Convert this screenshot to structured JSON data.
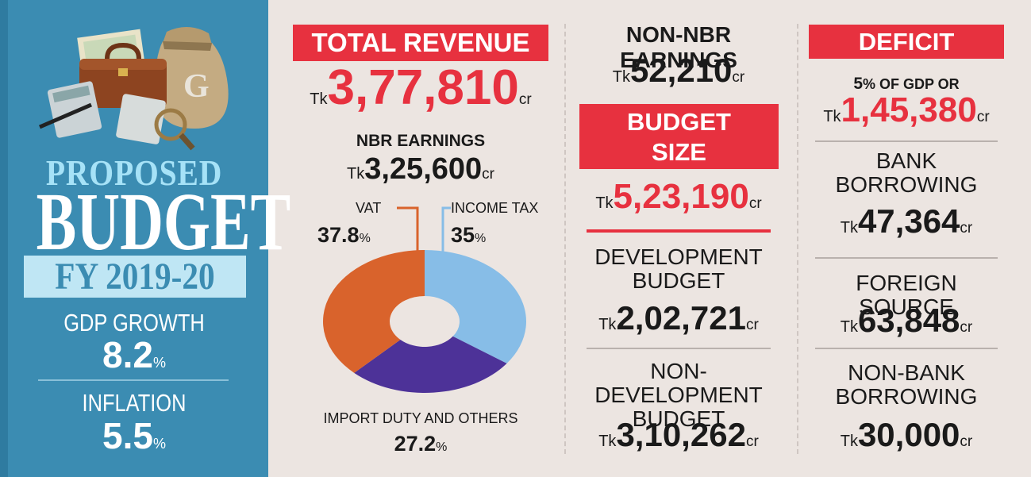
{
  "left_panel": {
    "proposed": "PROPOSED",
    "budget": "BUDGET",
    "fy": "FY 2019-20",
    "gdp_label": "GDP GROWTH",
    "gdp_value": "8.2",
    "gdp_unit": "%",
    "inflation_label": "INFLATION",
    "inflation_value": "5.5",
    "inflation_unit": "%",
    "illustration": "money-bag-briefcase-calculator-icon"
  },
  "revenue": {
    "title": "TOTAL REVENUE",
    "tk": "Tk",
    "value": "3,77,810",
    "unit": "cr",
    "nbr_label": "NBR EARNINGS",
    "nbr_value": "3,25,600"
  },
  "non_nbr": {
    "title": "NON-NBR EARNINGS",
    "value": "52,210"
  },
  "budget_size": {
    "title_line1": "BUDGET",
    "title_line2": "SIZE",
    "value": "5,23,190",
    "dev_line1": "DEVELOPMENT",
    "dev_line2": "BUDGET",
    "dev_value": "2,02,721",
    "nondev_line1": "NON-DEVELOPMENT",
    "nondev_line2": "BUDGET",
    "nondev_value": "3,10,262"
  },
  "deficit": {
    "title": "DEFICIT",
    "gdp_note_pct": "5",
    "gdp_note_rest": "% OF GDP OR",
    "value": "1,45,380",
    "bank_line1": "BANK",
    "bank_line2": "BORROWING",
    "bank_value": "47,364",
    "foreign_label": "FOREIGN SOURCE",
    "foreign_value": "63,848",
    "nonbank_line1": "NON-BANK",
    "nonbank_line2": "BORROWING",
    "nonbank_value": "30,000"
  },
  "chart_data": {
    "type": "pie",
    "variant": "donut",
    "categories": [
      "VAT",
      "INCOME TAX",
      "IMPORT DUTY AND OTHERS"
    ],
    "values": [
      37.8,
      35,
      27.2
    ],
    "value_labels": [
      "37.8",
      "35",
      "27.2"
    ],
    "unit": "%",
    "colors": [
      "#d9632c",
      "#87bde7",
      "#4d3298"
    ]
  },
  "colors": {
    "accent_red": "#e7313f",
    "panel_blue": "#3b8cb2",
    "background": "#ece5e1"
  }
}
